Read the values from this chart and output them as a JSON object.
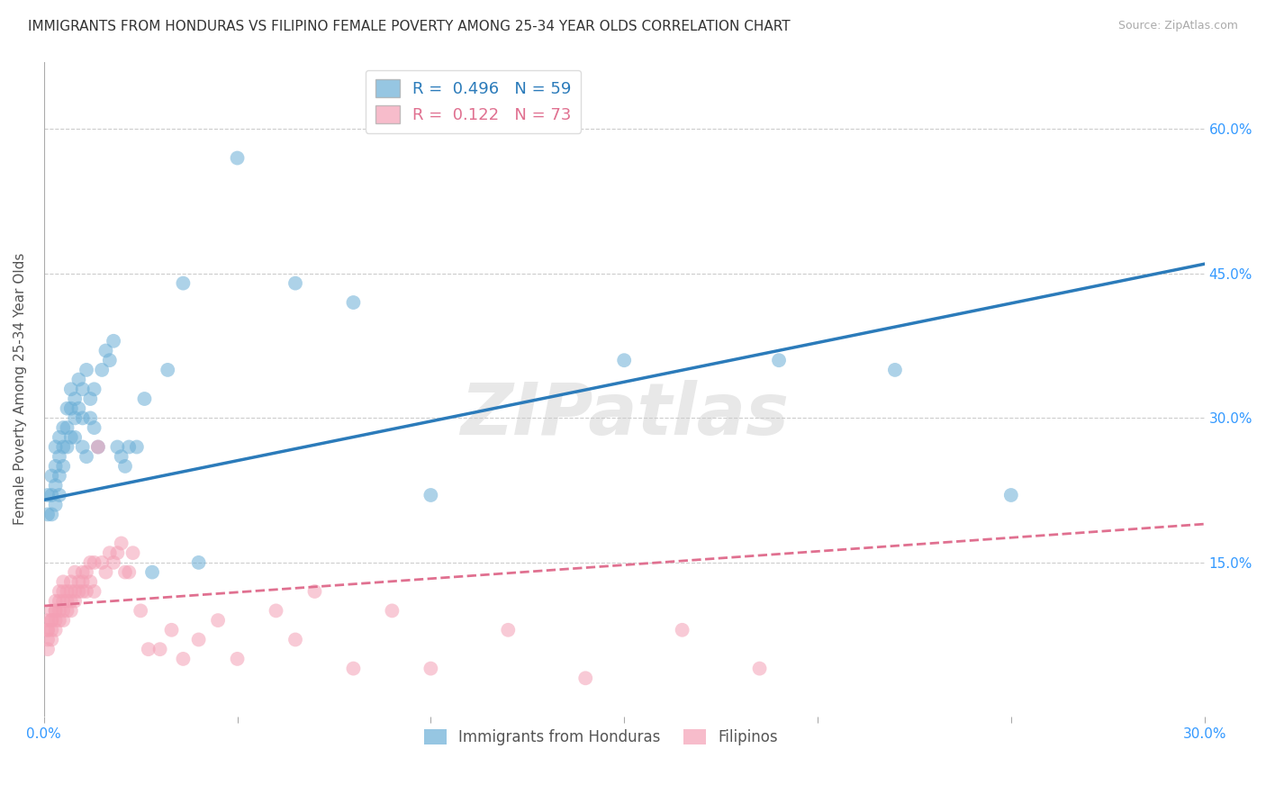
{
  "title": "IMMIGRANTS FROM HONDURAS VS FILIPINO FEMALE POVERTY AMONG 25-34 YEAR OLDS CORRELATION CHART",
  "source": "Source: ZipAtlas.com",
  "ylabel": "Female Poverty Among 25-34 Year Olds",
  "xlim": [
    0.0,
    0.3
  ],
  "ylim": [
    -0.01,
    0.67
  ],
  "xticks": [
    0.0,
    0.05,
    0.1,
    0.15,
    0.2,
    0.25,
    0.3
  ],
  "xtick_labels": [
    "0.0%",
    "",
    "",
    "",
    "",
    "",
    "30.0%"
  ],
  "yticks": [
    0.15,
    0.3,
    0.45,
    0.6
  ],
  "ytick_labels": [
    "15.0%",
    "30.0%",
    "45.0%",
    "60.0%"
  ],
  "legend_label1": "Immigrants from Honduras",
  "legend_label2": "Filipinos",
  "blue_color": "#6aaed6",
  "pink_color": "#f4a0b5",
  "blue_line_color": "#2b7bba",
  "pink_line_color": "#e07090",
  "r_blue": 0.496,
  "n_blue": 59,
  "r_pink": 0.122,
  "n_pink": 73,
  "blue_x": [
    0.001,
    0.001,
    0.002,
    0.002,
    0.002,
    0.003,
    0.003,
    0.003,
    0.003,
    0.004,
    0.004,
    0.004,
    0.004,
    0.005,
    0.005,
    0.005,
    0.006,
    0.006,
    0.006,
    0.007,
    0.007,
    0.007,
    0.008,
    0.008,
    0.008,
    0.009,
    0.009,
    0.01,
    0.01,
    0.01,
    0.011,
    0.011,
    0.012,
    0.012,
    0.013,
    0.013,
    0.014,
    0.015,
    0.016,
    0.017,
    0.018,
    0.019,
    0.02,
    0.021,
    0.022,
    0.024,
    0.026,
    0.028,
    0.032,
    0.036,
    0.04,
    0.05,
    0.065,
    0.08,
    0.1,
    0.15,
    0.19,
    0.22,
    0.25
  ],
  "blue_y": [
    0.22,
    0.2,
    0.24,
    0.22,
    0.2,
    0.27,
    0.25,
    0.23,
    0.21,
    0.28,
    0.26,
    0.24,
    0.22,
    0.29,
    0.27,
    0.25,
    0.31,
    0.29,
    0.27,
    0.33,
    0.31,
    0.28,
    0.32,
    0.3,
    0.28,
    0.34,
    0.31,
    0.33,
    0.3,
    0.27,
    0.35,
    0.26,
    0.32,
    0.3,
    0.33,
    0.29,
    0.27,
    0.35,
    0.37,
    0.36,
    0.38,
    0.27,
    0.26,
    0.25,
    0.27,
    0.27,
    0.32,
    0.14,
    0.35,
    0.44,
    0.15,
    0.57,
    0.44,
    0.42,
    0.22,
    0.36,
    0.36,
    0.35,
    0.22
  ],
  "pink_x": [
    0.001,
    0.001,
    0.001,
    0.001,
    0.001,
    0.002,
    0.002,
    0.002,
    0.002,
    0.002,
    0.003,
    0.003,
    0.003,
    0.003,
    0.003,
    0.004,
    0.004,
    0.004,
    0.004,
    0.005,
    0.005,
    0.005,
    0.005,
    0.005,
    0.006,
    0.006,
    0.006,
    0.007,
    0.007,
    0.007,
    0.007,
    0.008,
    0.008,
    0.008,
    0.009,
    0.009,
    0.01,
    0.01,
    0.01,
    0.011,
    0.011,
    0.012,
    0.012,
    0.013,
    0.013,
    0.014,
    0.015,
    0.016,
    0.017,
    0.018,
    0.019,
    0.02,
    0.021,
    0.022,
    0.023,
    0.025,
    0.027,
    0.03,
    0.033,
    0.036,
    0.04,
    0.045,
    0.05,
    0.06,
    0.065,
    0.07,
    0.08,
    0.09,
    0.1,
    0.12,
    0.14,
    0.165,
    0.185
  ],
  "pink_y": [
    0.09,
    0.08,
    0.08,
    0.07,
    0.06,
    0.1,
    0.09,
    0.09,
    0.08,
    0.07,
    0.11,
    0.1,
    0.1,
    0.09,
    0.08,
    0.12,
    0.11,
    0.1,
    0.09,
    0.13,
    0.12,
    0.11,
    0.1,
    0.09,
    0.12,
    0.11,
    0.1,
    0.13,
    0.12,
    0.11,
    0.1,
    0.14,
    0.12,
    0.11,
    0.13,
    0.12,
    0.14,
    0.13,
    0.12,
    0.14,
    0.12,
    0.15,
    0.13,
    0.15,
    0.12,
    0.27,
    0.15,
    0.14,
    0.16,
    0.15,
    0.16,
    0.17,
    0.14,
    0.14,
    0.16,
    0.1,
    0.06,
    0.06,
    0.08,
    0.05,
    0.07,
    0.09,
    0.05,
    0.1,
    0.07,
    0.12,
    0.04,
    0.1,
    0.04,
    0.08,
    0.03,
    0.08,
    0.04
  ],
  "watermark": "ZIPatlas",
  "grid_color": "#cccccc",
  "title_fontsize": 11,
  "axis_label_fontsize": 11,
  "tick_fontsize": 11,
  "blue_line_x0": 0.0,
  "blue_line_x1": 0.3,
  "blue_line_y0": 0.215,
  "blue_line_y1": 0.46,
  "pink_line_x0": 0.0,
  "pink_line_x1": 0.3,
  "pink_line_y0": 0.105,
  "pink_line_y1": 0.19
}
